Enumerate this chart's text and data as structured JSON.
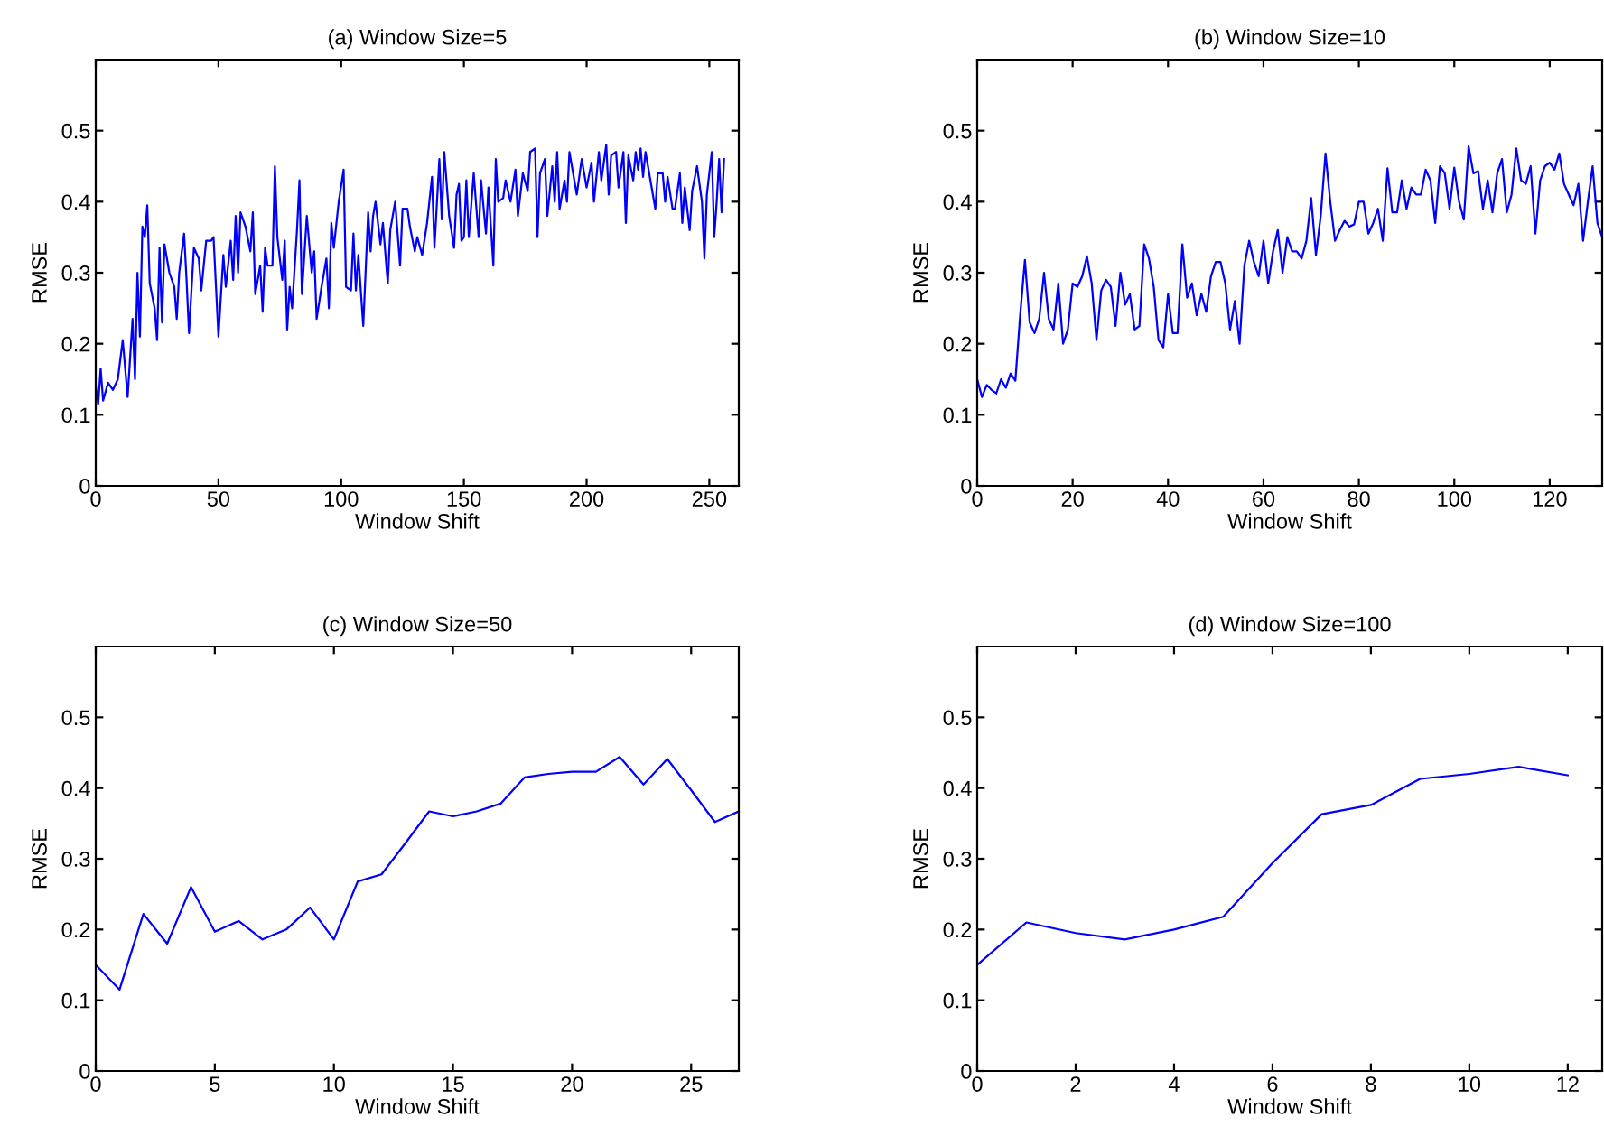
{
  "chart_data": [
    {
      "type": "line",
      "title": "(a) Window Size=5",
      "xlabel": "Window Shift",
      "ylabel": "RMSE",
      "xlim": [
        0,
        262
      ],
      "ylim": [
        0,
        0.6
      ],
      "xticks": [
        0,
        50,
        100,
        150,
        200,
        250
      ],
      "yticks": [
        0,
        0.1,
        0.2,
        0.3,
        0.4,
        0.5
      ],
      "x": [
        0,
        1,
        2,
        3,
        5,
        7,
        9,
        11,
        13,
        15,
        16,
        17,
        18,
        19,
        20,
        21,
        22,
        24,
        25,
        26,
        27,
        28,
        30,
        32,
        33,
        34,
        36,
        37,
        38,
        40,
        42,
        43,
        45,
        47,
        48,
        50,
        52,
        53,
        55,
        56,
        57,
        58,
        59,
        61,
        63,
        64,
        65,
        67,
        68,
        69,
        70,
        72,
        73,
        74,
        76,
        77,
        78,
        79,
        80,
        82,
        83,
        84,
        86,
        88,
        89,
        90,
        92,
        94,
        95,
        96,
        97,
        99,
        101,
        102,
        104,
        105,
        106,
        107,
        109,
        111,
        112,
        113,
        114,
        116,
        117,
        119,
        120,
        122,
        124,
        125,
        127,
        128,
        130,
        131,
        133,
        135,
        137,
        138,
        140,
        141,
        142,
        144,
        146,
        147,
        148,
        149,
        150,
        151,
        152,
        154,
        156,
        157,
        159,
        160,
        162,
        163,
        164,
        166,
        167,
        169,
        171,
        172,
        174,
        176,
        177,
        179,
        180,
        181,
        183,
        184,
        186,
        187,
        188,
        189,
        191,
        192,
        193,
        195,
        196,
        198,
        200,
        202,
        203,
        205,
        206,
        208,
        209,
        210,
        212,
        213,
        215,
        216,
        217,
        219,
        220,
        221,
        222,
        223,
        224,
        226,
        228,
        229,
        231,
        232,
        233,
        235,
        236,
        238,
        239,
        240,
        242,
        243,
        245,
        247,
        248,
        249,
        251,
        252,
        253,
        254,
        255,
        256
      ],
      "series": [
        {
          "color": "#0000ff",
          "values": [
            0.14,
            0.115,
            0.165,
            0.12,
            0.145,
            0.135,
            0.15,
            0.205,
            0.125,
            0.235,
            0.15,
            0.3,
            0.21,
            0.365,
            0.35,
            0.395,
            0.285,
            0.25,
            0.205,
            0.335,
            0.23,
            0.34,
            0.3,
            0.28,
            0.235,
            0.3,
            0.355,
            0.29,
            0.215,
            0.335,
            0.32,
            0.275,
            0.345,
            0.345,
            0.35,
            0.21,
            0.325,
            0.28,
            0.345,
            0.29,
            0.38,
            0.3,
            0.385,
            0.365,
            0.33,
            0.385,
            0.27,
            0.31,
            0.245,
            0.335,
            0.31,
            0.31,
            0.45,
            0.35,
            0.29,
            0.345,
            0.22,
            0.28,
            0.25,
            0.36,
            0.43,
            0.27,
            0.38,
            0.3,
            0.33,
            0.235,
            0.28,
            0.32,
            0.25,
            0.37,
            0.335,
            0.4,
            0.445,
            0.28,
            0.275,
            0.355,
            0.275,
            0.325,
            0.225,
            0.385,
            0.33,
            0.38,
            0.4,
            0.34,
            0.37,
            0.285,
            0.36,
            0.4,
            0.31,
            0.39,
            0.39,
            0.365,
            0.33,
            0.35,
            0.325,
            0.37,
            0.435,
            0.335,
            0.46,
            0.375,
            0.47,
            0.38,
            0.335,
            0.41,
            0.425,
            0.345,
            0.35,
            0.43,
            0.35,
            0.44,
            0.35,
            0.43,
            0.355,
            0.42,
            0.31,
            0.46,
            0.4,
            0.405,
            0.43,
            0.4,
            0.445,
            0.38,
            0.44,
            0.415,
            0.47,
            0.475,
            0.35,
            0.44,
            0.46,
            0.38,
            0.45,
            0.4,
            0.47,
            0.39,
            0.43,
            0.4,
            0.47,
            0.43,
            0.41,
            0.46,
            0.42,
            0.455,
            0.4,
            0.47,
            0.43,
            0.48,
            0.41,
            0.465,
            0.47,
            0.42,
            0.47,
            0.37,
            0.465,
            0.43,
            0.47,
            0.445,
            0.475,
            0.435,
            0.47,
            0.43,
            0.39,
            0.44,
            0.44,
            0.4,
            0.435,
            0.39,
            0.39,
            0.44,
            0.37,
            0.42,
            0.36,
            0.415,
            0.45,
            0.4,
            0.32,
            0.41,
            0.47,
            0.35,
            0.4,
            0.46,
            0.385,
            0.46
          ]
        }
      ]
    },
    {
      "type": "line",
      "title": "(b) Window Size=10",
      "xlabel": "Window Shift",
      "ylabel": "RMSE",
      "xlim": [
        0,
        131
      ],
      "ylim": [
        0,
        0.6
      ],
      "xticks": [
        0,
        20,
        40,
        60,
        80,
        100,
        120
      ],
      "yticks": [
        0,
        0.1,
        0.2,
        0.3,
        0.4,
        0.5
      ],
      "x": [
        0,
        1,
        2,
        3,
        4,
        5,
        6,
        7,
        8,
        9,
        10,
        11,
        12,
        13,
        14,
        15,
        16,
        17,
        18,
        19,
        20,
        21,
        22,
        23,
        24,
        25,
        26,
        27,
        28,
        29,
        30,
        31,
        32,
        33,
        34,
        35,
        36,
        37,
        38,
        39,
        40,
        41,
        42,
        43,
        44,
        45,
        46,
        47,
        48,
        49,
        50,
        51,
        52,
        53,
        54,
        55,
        56,
        57,
        58,
        59,
        60,
        61,
        62,
        63,
        64,
        65,
        66,
        67,
        68,
        69,
        70,
        71,
        72,
        73,
        74,
        75,
        76,
        77,
        78,
        79,
        80,
        81,
        82,
        83,
        84,
        85,
        86,
        87,
        88,
        89,
        90,
        91,
        92,
        93,
        94,
        95,
        96,
        97,
        98,
        99,
        100,
        101,
        102,
        103,
        104,
        105,
        106,
        107,
        108,
        109,
        110,
        111,
        112,
        113,
        114,
        115,
        116,
        117,
        118,
        119,
        120,
        121,
        122,
        123,
        124,
        125,
        126,
        127,
        128,
        129,
        130,
        131
      ],
      "series": [
        {
          "color": "#0000ff",
          "values": [
            0.15,
            0.125,
            0.142,
            0.135,
            0.13,
            0.15,
            0.138,
            0.158,
            0.148,
            0.24,
            0.318,
            0.23,
            0.215,
            0.235,
            0.3,
            0.235,
            0.22,
            0.285,
            0.2,
            0.22,
            0.285,
            0.28,
            0.295,
            0.323,
            0.285,
            0.205,
            0.275,
            0.29,
            0.28,
            0.225,
            0.3,
            0.255,
            0.27,
            0.22,
            0.225,
            0.34,
            0.32,
            0.28,
            0.205,
            0.195,
            0.27,
            0.215,
            0.215,
            0.34,
            0.265,
            0.285,
            0.24,
            0.27,
            0.245,
            0.295,
            0.315,
            0.315,
            0.285,
            0.22,
            0.26,
            0.2,
            0.31,
            0.345,
            0.315,
            0.295,
            0.345,
            0.285,
            0.33,
            0.36,
            0.3,
            0.35,
            0.33,
            0.33,
            0.32,
            0.345,
            0.405,
            0.325,
            0.38,
            0.468,
            0.4,
            0.345,
            0.36,
            0.373,
            0.365,
            0.368,
            0.4,
            0.4,
            0.355,
            0.37,
            0.39,
            0.345,
            0.447,
            0.385,
            0.385,
            0.43,
            0.39,
            0.42,
            0.41,
            0.41,
            0.445,
            0.43,
            0.37,
            0.45,
            0.44,
            0.39,
            0.448,
            0.4,
            0.375,
            0.478,
            0.44,
            0.443,
            0.39,
            0.43,
            0.385,
            0.44,
            0.46,
            0.385,
            0.41,
            0.475,
            0.43,
            0.425,
            0.45,
            0.355,
            0.43,
            0.45,
            0.455,
            0.445,
            0.468,
            0.425,
            0.41,
            0.395,
            0.425,
            0.345,
            0.4,
            0.45,
            0.37,
            0.35
          ]
        }
      ]
    },
    {
      "type": "line",
      "title": "(c) Window Size=50",
      "xlabel": "Window Shift",
      "ylabel": "RMSE",
      "xlim": [
        0,
        27
      ],
      "ylim": [
        0,
        0.6
      ],
      "xticks": [
        0,
        5,
        10,
        15,
        20,
        25
      ],
      "yticks": [
        0,
        0.1,
        0.2,
        0.3,
        0.4,
        0.5
      ],
      "x": [
        0,
        1,
        2,
        3,
        4,
        5,
        6,
        7,
        8,
        9,
        10,
        11,
        12,
        13,
        14,
        15,
        16,
        17,
        18,
        19,
        20,
        21,
        22,
        23,
        24,
        25,
        26,
        27
      ],
      "series": [
        {
          "color": "#0000ff",
          "values": [
            0.15,
            0.115,
            0.222,
            0.18,
            0.26,
            0.197,
            0.212,
            0.186,
            0.2,
            0.231,
            0.186,
            0.268,
            0.278,
            0.322,
            0.367,
            0.36,
            0.367,
            0.378,
            0.415,
            0.42,
            0.423,
            0.423,
            0.444,
            0.405,
            0.441,
            0.397,
            0.352,
            0.367
          ]
        }
      ]
    },
    {
      "type": "line",
      "title": "(d) Window Size=100",
      "xlabel": "Window Shift",
      "ylabel": "RMSE",
      "xlim": [
        0,
        12.7
      ],
      "ylim": [
        0,
        0.6
      ],
      "xticks": [
        0,
        2,
        4,
        6,
        8,
        10,
        12
      ],
      "yticks": [
        0,
        0.1,
        0.2,
        0.3,
        0.4,
        0.5
      ],
      "x": [
        0,
        1,
        2,
        3,
        4,
        5,
        6,
        7,
        8,
        9,
        10,
        11,
        12
      ],
      "series": [
        {
          "color": "#0000ff",
          "values": [
            0.15,
            0.21,
            0.195,
            0.186,
            0.2,
            0.218,
            0.294,
            0.363,
            0.376,
            0.413,
            0.42,
            0.43,
            0.418
          ]
        }
      ]
    }
  ]
}
